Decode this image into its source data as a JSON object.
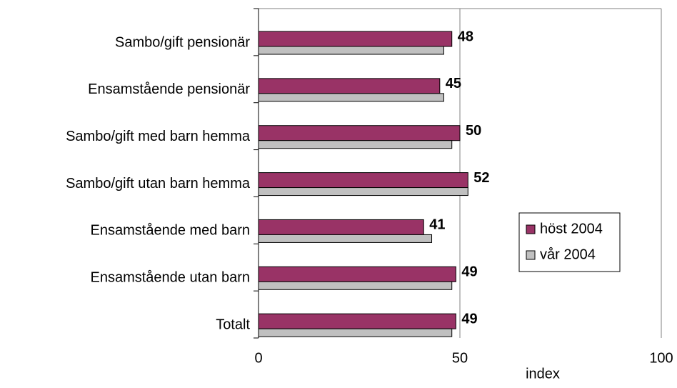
{
  "chart_data": {
    "type": "bar",
    "orientation": "horizontal",
    "categories": [
      "Sambo/gift pensionär",
      "Ensamstående pensionär",
      "Sambo/gift med barn hemma",
      "Sambo/gift utan barn hemma",
      "Ensamstående med barn",
      "Ensamstående utan barn",
      "Totalt"
    ],
    "series": [
      {
        "name": "höst 2004",
        "color": "#993366",
        "values": [
          48,
          45,
          50,
          52,
          41,
          49,
          49
        ],
        "show_labels": true
      },
      {
        "name": "vår 2004",
        "color": "#c0c0c0",
        "values": [
          46,
          46,
          48,
          52,
          43,
          48,
          48
        ],
        "show_labels": false
      }
    ],
    "xlabel": "index",
    "xlim": [
      0,
      100
    ],
    "xticks": [
      0,
      50,
      100
    ],
    "grid": true,
    "legend": "right"
  }
}
